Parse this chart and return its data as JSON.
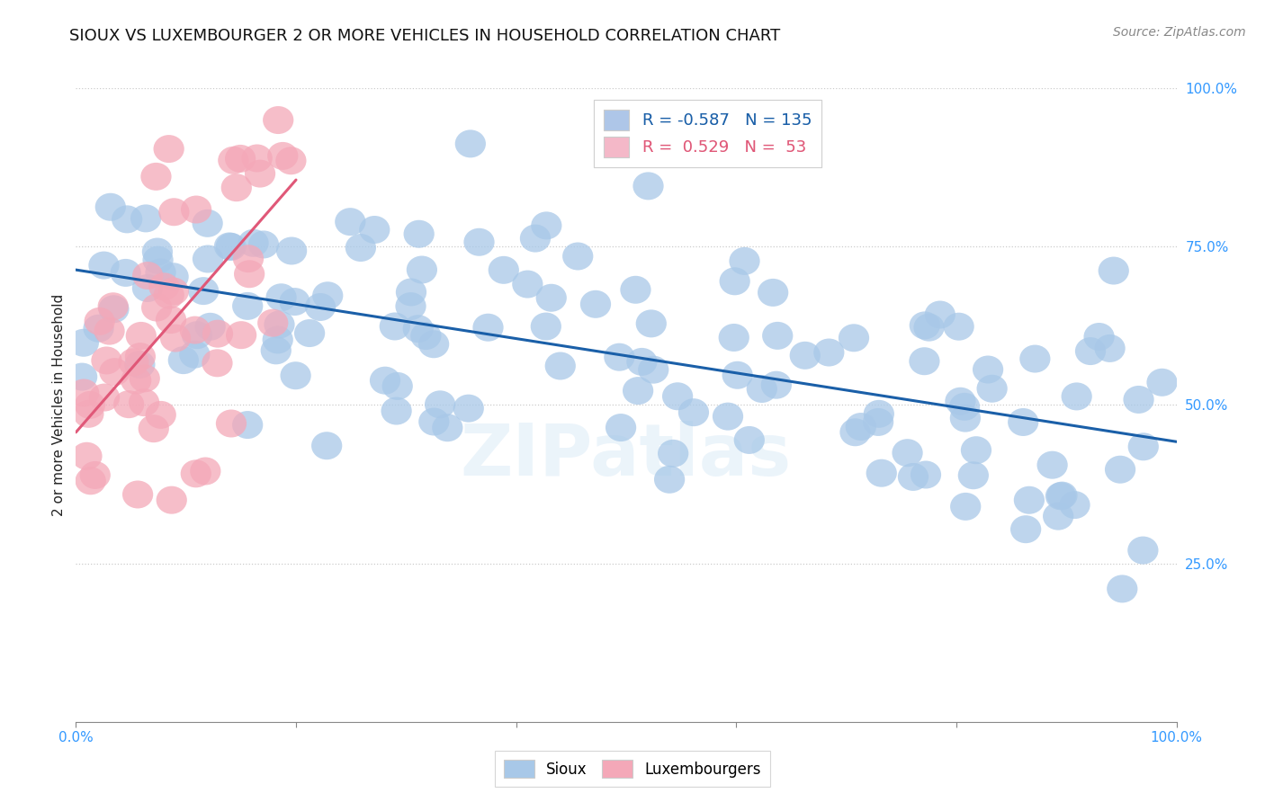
{
  "title": "SIOUX VS LUXEMBOURGER 2 OR MORE VEHICLES IN HOUSEHOLD CORRELATION CHART",
  "source": "Source: ZipAtlas.com",
  "ylabel": "2 or more Vehicles in Household",
  "legend_sioux": {
    "R": "-0.587",
    "N": "135",
    "color": "#aec6e8"
  },
  "legend_lux": {
    "R": "0.529",
    "N": "53",
    "color": "#f4b8c8"
  },
  "sioux_color": "#a8c8e8",
  "lux_color": "#f4a8b8",
  "sioux_line_color": "#1a5fa8",
  "lux_line_color": "#e05878",
  "watermark": "ZIPatlas",
  "sioux_R": -0.587,
  "sioux_N": 135,
  "lux_R": 0.529,
  "lux_N": 53,
  "sioux_seed": 42,
  "lux_seed": 77,
  "xlim": [
    0,
    100
  ],
  "ylim": [
    0,
    100
  ],
  "ytick_positions": [
    25,
    50,
    75,
    100
  ],
  "ytick_labels": [
    "25.0%",
    "50.0%",
    "75.0%",
    "100.0%"
  ],
  "xtick_positions": [
    0,
    20,
    40,
    60,
    80,
    100
  ],
  "xtick_labels": [
    "0.0%",
    "",
    "",
    "",
    "",
    "100.0%"
  ],
  "title_fontsize": 13,
  "source_fontsize": 10,
  "tick_fontsize": 11,
  "legend_fontsize": 13,
  "scatter_size": 130,
  "scatter_alpha": 0.75,
  "line_width": 2.2,
  "grid_color": "#cccccc",
  "grid_alpha": 0.8,
  "grid_linestyle": "dotted"
}
